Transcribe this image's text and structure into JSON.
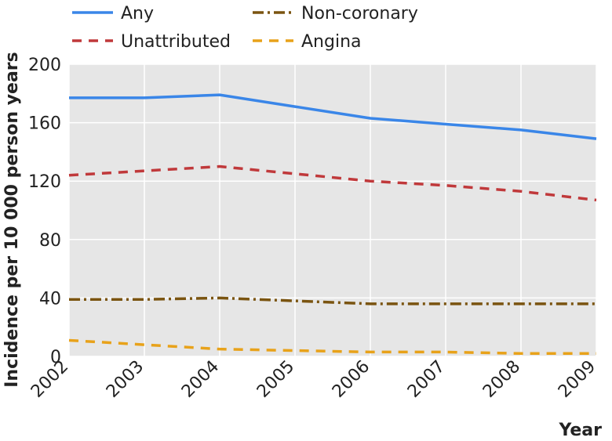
{
  "chart_data": {
    "type": "line",
    "title": "",
    "xlabel": "Year",
    "ylabel": "Incidence per 10 000 person years",
    "x": [
      "2002",
      "2003",
      "2004",
      "2005",
      "2006",
      "2007",
      "2008",
      "2009"
    ],
    "yticks": [
      0,
      40,
      80,
      120,
      160,
      200
    ],
    "ylim": [
      0,
      200
    ],
    "grid": true,
    "legend_position": "top",
    "series": [
      {
        "name": "Any",
        "values": [
          177,
          177,
          179,
          171,
          163,
          159,
          155,
          149
        ],
        "color": "#3a86e8",
        "style": "solid"
      },
      {
        "name": "Non-coronary",
        "values": [
          39,
          39,
          40,
          38,
          36,
          36,
          36,
          36
        ],
        "color": "#7a5410",
        "style": "dashdot"
      },
      {
        "name": "Unattributed",
        "values": [
          124,
          127,
          130,
          125,
          120,
          117,
          113,
          107
        ],
        "color": "#c0393b",
        "style": "dashed"
      },
      {
        "name": "Angina",
        "values": [
          11,
          8,
          5,
          4,
          3,
          3,
          2,
          2
        ],
        "color": "#e8a21a",
        "style": "dashed"
      }
    ]
  },
  "colors": {
    "plot_background": "#e6e6e6",
    "gridline": "#ffffff"
  }
}
